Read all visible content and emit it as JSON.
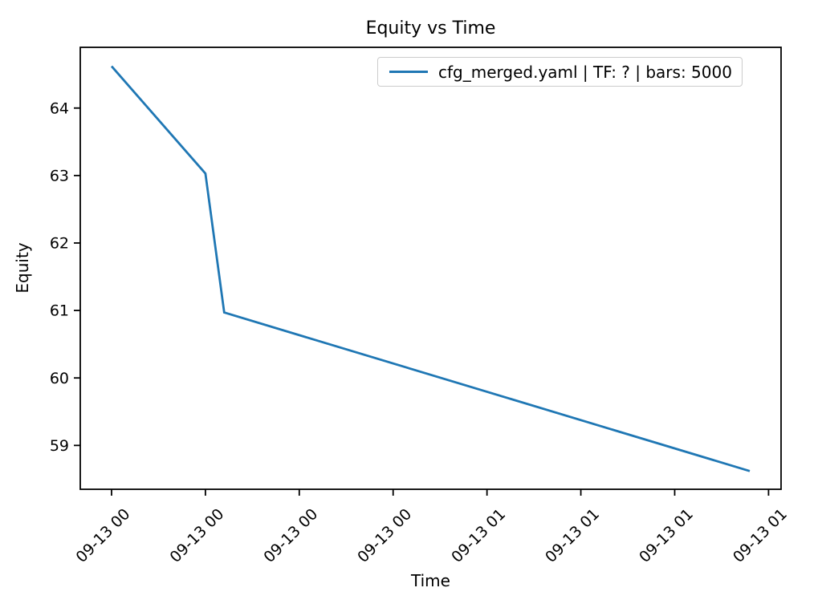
{
  "chart_data": {
    "type": "line",
    "title": "Equity vs Time",
    "xlabel": "Time",
    "ylabel": "Equity",
    "grid": false,
    "legend_position": "upper right",
    "line_color": "#1f77b4",
    "y_ticks": [
      59,
      60,
      61,
      62,
      63,
      64
    ],
    "ylim": [
      58.35,
      64.9
    ],
    "x_tick_labels": [
      "09-13 00",
      "09-13 00",
      "09-13 00",
      "09-13 00",
      "09-13 01",
      "09-13 01",
      "09-13 01",
      "09-13 01"
    ],
    "x_tick_positions_minutes": [
      0,
      15,
      30,
      45,
      60,
      75,
      90,
      105
    ],
    "xlim_minutes": [
      -5,
      107
    ],
    "series": [
      {
        "name": "cfg_merged.yaml | TF: ? | bars: 5000",
        "points": [
          {
            "x_min": 0,
            "equity": 64.62
          },
          {
            "x_min": 15,
            "equity": 63.03
          },
          {
            "x_min": 18,
            "equity": 60.97
          },
          {
            "x_min": 102,
            "equity": 58.62
          }
        ]
      }
    ]
  }
}
